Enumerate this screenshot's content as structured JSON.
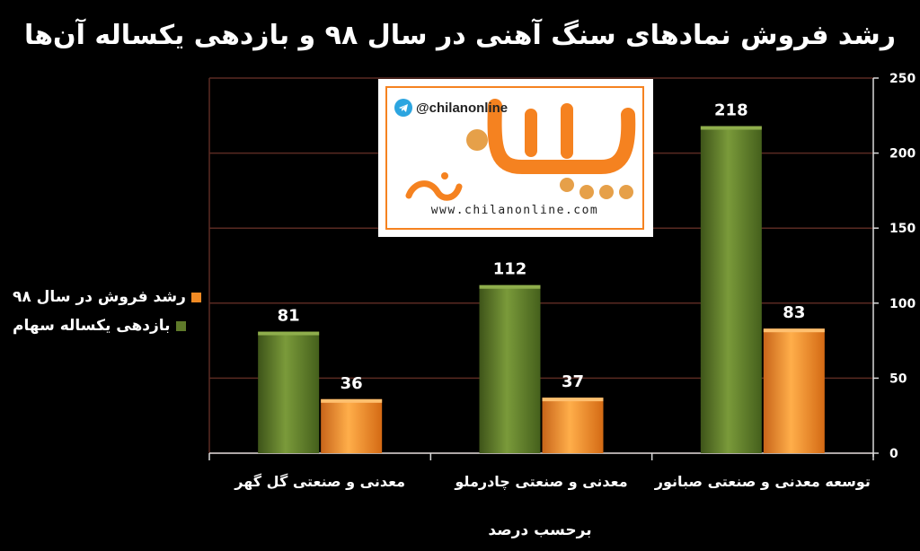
{
  "title": "رشد فروش نمادهای سنگ آهنی در سال ۹۸ و بازدهی یکساله آن‌ها",
  "logo": {
    "handle": "@chilanonline",
    "url": "www.chilanonline.com",
    "colors": {
      "orange": "#f58220",
      "tan": "#e6a049",
      "telegram": "#2ca5e0"
    }
  },
  "chart_data": {
    "type": "bar",
    "xlabel": "برحسب درصد",
    "ylabel": "",
    "ylim": [
      0,
      250
    ],
    "yticks": [
      0,
      50,
      100,
      150,
      200,
      250
    ],
    "y_axis_side": "right",
    "grid": true,
    "legend_position": "left",
    "categories": [
      "توسعه معدنی و صنعتی صبانور",
      "معدنی و صنعتی چادرملو",
      "معدنی و صنعتی گل گهر"
    ],
    "series": [
      {
        "name": "رشد فروش در سال ۹۸",
        "values": [
          83,
          37,
          36
        ],
        "color": "#f08a24"
      },
      {
        "name": "بازدهی یکساله سهام",
        "values": [
          218,
          112,
          81
        ],
        "color": "#5f7a2a"
      }
    ],
    "plot_background": "#000000",
    "grid_color": "#5a2a22"
  }
}
